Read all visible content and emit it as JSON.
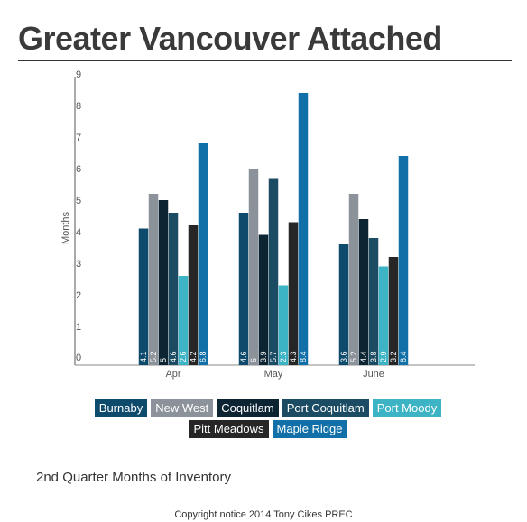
{
  "title": "Greater Vancouver Attached",
  "subtitle": "2nd Quarter Months of Inventory",
  "footer": "Copyright notice 2014 Tony Cikes PREC",
  "chart_data": {
    "type": "bar",
    "ylabel": "Months",
    "xlabel": "",
    "ylim": [
      0,
      9
    ],
    "y_ticks": [
      0,
      1,
      2,
      3,
      4,
      5,
      6,
      7,
      8,
      9
    ],
    "categories": [
      "Apr",
      "May",
      "June"
    ],
    "grid": false,
    "legend_position": "bottom",
    "series": [
      {
        "name": "Burnaby",
        "color": "#0e4a6b",
        "values": [
          4.1,
          4.6,
          3.6
        ],
        "labels": [
          "4.1",
          "4.6",
          "3.6"
        ]
      },
      {
        "name": "New West",
        "color": "#8b9299",
        "values": [
          5.2,
          6,
          5.2
        ],
        "labels": [
          "5.2",
          "6",
          "5.2"
        ]
      },
      {
        "name": "Coquitlam",
        "color": "#0d2433",
        "values": [
          5,
          3.9,
          4.4
        ],
        "labels": [
          "5",
          "3.9",
          "4.4"
        ]
      },
      {
        "name": "Port Coquitlam",
        "color": "#1c4c63",
        "values": [
          4.6,
          5.7,
          3.8
        ],
        "labels": [
          "4.6",
          "5.7",
          "3.8"
        ]
      },
      {
        "name": "Port Moody",
        "color": "#3db3c6",
        "values": [
          2.6,
          2.3,
          2.9
        ],
        "labels": [
          "2.6",
          "2.3",
          "2.9"
        ]
      },
      {
        "name": "Pitt Meadows",
        "color": "#262626",
        "values": [
          4.2,
          4.3,
          3.2
        ],
        "labels": [
          "4.2",
          "4.3",
          "3.2"
        ]
      },
      {
        "name": "Maple Ridge",
        "color": "#1270a8",
        "values": [
          6.8,
          8.4,
          6.4
        ],
        "labels": [
          "6.8",
          "8.4",
          "6.4"
        ]
      }
    ]
  }
}
